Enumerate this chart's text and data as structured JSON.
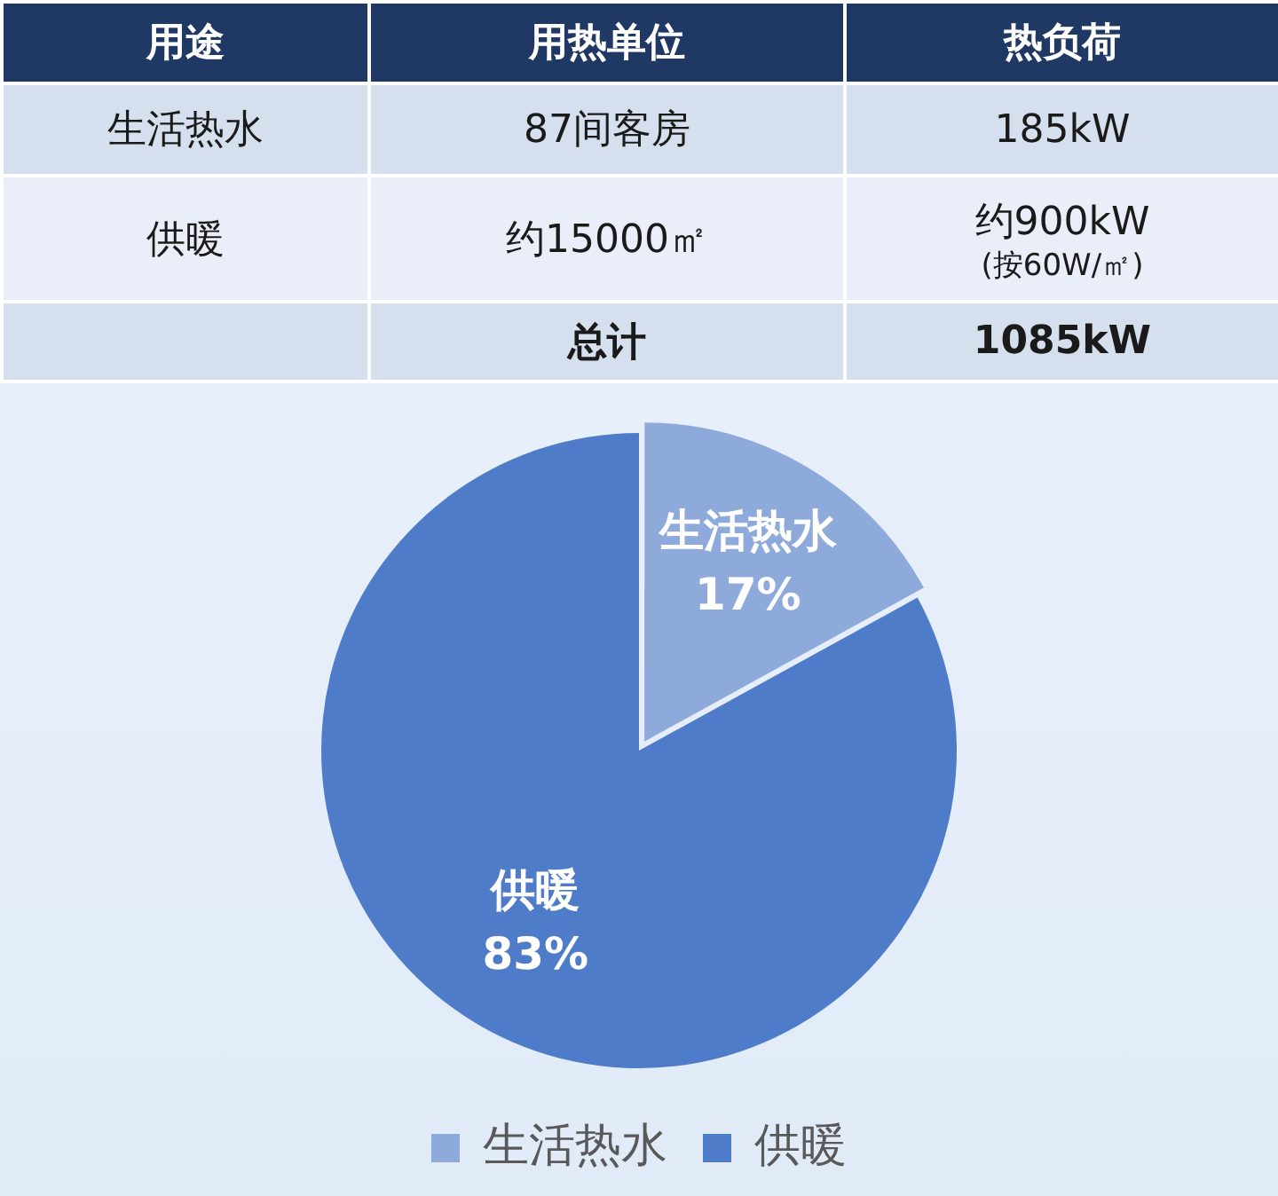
{
  "chart_data": [
    {
      "type": "other",
      "categories": [
        "用途",
        "用热单位",
        "热负荷"
      ],
      "y_categories": [
        "生活热水",
        "供暖",
        null
      ],
      "annotations": [
        "87间客房",
        "185kW",
        "约15000㎡",
        "约900kW\n(按60W/㎡)",
        "总计",
        "1085kW"
      ]
    },
    {
      "type": "pie",
      "categories": [
        "生活热水",
        "供暖"
      ],
      "values": [
        17,
        83
      ],
      "colors": [
        "#8eaadb",
        "#4f7cc9"
      ],
      "value_labels": [
        "17%",
        "83%"
      ],
      "legend": "bottom"
    }
  ]
}
